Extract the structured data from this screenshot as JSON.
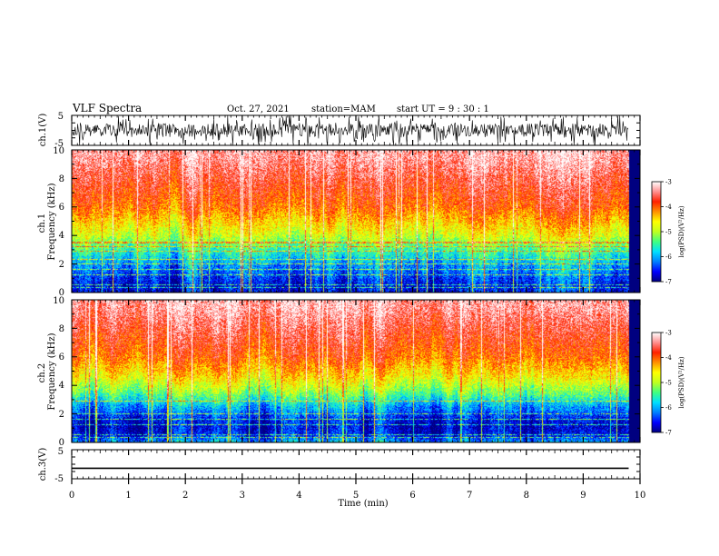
{
  "header": {
    "title": "VLF Spectra",
    "date": "Oct. 27, 2021",
    "station": "station=MAM",
    "start": "start  UT =   9  : 30 : 1"
  },
  "colorbar": {
    "label": "log(PSD)(V²/Hz)",
    "ticks": [
      "-3",
      "-4",
      "-5",
      "-6",
      "-7"
    ],
    "colors": [
      "#000080",
      "#0000ff",
      "#0080ff",
      "#00e0ff",
      "#40ff80",
      "#c0ff20",
      "#ffff00",
      "#ff9000",
      "#ff2000",
      "#ff9090",
      "#ffffff"
    ]
  },
  "chart_data": [
    {
      "type": "line",
      "panel": "ch.1 waveform",
      "ylabel": "ch.1(V)",
      "ylim": [
        -5,
        5
      ],
      "yticks": [
        "5",
        "-5"
      ],
      "description_units": "V",
      "series": [
        {
          "values": [
            -5,
            5
          ]
        }
      ]
    },
    {
      "type": "heatmap",
      "panel": "ch.1 spectrogram",
      "ylabel": "ch.1\nFrequency (kHz)",
      "ylim": [
        0,
        10
      ],
      "yticks": [
        "0",
        "2",
        "4",
        "6",
        "8",
        "10"
      ],
      "xlim": [
        0,
        10
      ],
      "clim": [
        -7,
        -3
      ],
      "profile_freq_khz": [
        0,
        0.5,
        1,
        1.5,
        2,
        2.5,
        3,
        3.5,
        4,
        4.5,
        5,
        5.5,
        6,
        6.5,
        7,
        7.5,
        8,
        8.5,
        9,
        9.5,
        10
      ],
      "profile_log_psd": [
        -6.6,
        -6.6,
        -6.4,
        -6.2,
        -6.0,
        -5.7,
        -5.4,
        -5.1,
        -4.8,
        -4.6,
        -4.4,
        -4.2,
        -4.0,
        -3.9,
        -3.8,
        -3.7,
        -3.6,
        -3.5,
        -3.4,
        -3.3,
        -3.3
      ],
      "narrowband_lines_khz": [
        0.3,
        0.5,
        1.2,
        1.6,
        2.0,
        2.3,
        2.9,
        3.2,
        3.5
      ]
    },
    {
      "type": "heatmap",
      "panel": "ch.2 spectrogram",
      "ylabel": "ch.2\nFrequency (kHz)",
      "ylim": [
        0,
        10
      ],
      "yticks": [
        "0",
        "2",
        "4",
        "6",
        "8",
        "10"
      ],
      "xlim": [
        0,
        10
      ],
      "clim": [
        -7,
        -3
      ],
      "profile_freq_khz": [
        0,
        0.5,
        1,
        1.5,
        2,
        2.5,
        3,
        3.5,
        4,
        4.5,
        5,
        5.5,
        6,
        6.5,
        7,
        7.5,
        8,
        8.5,
        9,
        9.5,
        10
      ],
      "profile_log_psd": [
        -6.0,
        -6.6,
        -6.7,
        -6.6,
        -6.3,
        -6.0,
        -5.6,
        -5.2,
        -4.9,
        -4.6,
        -4.4,
        -4.2,
        -4.0,
        -3.9,
        -3.8,
        -3.7,
        -3.6,
        -3.5,
        -3.4,
        -3.3,
        -3.3
      ],
      "narrowband_lines_khz": [
        0.3,
        0.5,
        1.2,
        1.6,
        2.0,
        2.9
      ]
    },
    {
      "type": "line",
      "panel": "ch.3 waveform",
      "ylabel": "ch.3(V)",
      "ylim": [
        -5,
        5
      ],
      "yticks": [
        "5",
        "-5"
      ],
      "xlabel": "Time  (min)",
      "xlim": [
        0,
        10
      ],
      "xticks": [
        "0",
        "1",
        "2",
        "3",
        "4",
        "5",
        "6",
        "7",
        "8",
        "9",
        "10"
      ],
      "series": [
        {
          "x": [
            0,
            9.8
          ],
          "values": [
            -1.4,
            -1.4
          ]
        }
      ]
    }
  ]
}
